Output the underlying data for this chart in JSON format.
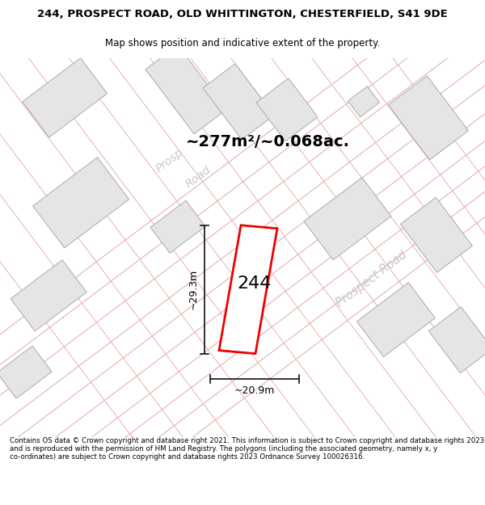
{
  "title_line1": "244, PROSPECT ROAD, OLD WHITTINGTON, CHESTERFIELD, S41 9DE",
  "title_line2": "Map shows position and indicative extent of the property.",
  "footer_text": "Contains OS data © Crown copyright and database right 2021. This information is subject to Crown copyright and database rights 2023 and is reproduced with the permission of HM Land Registry. The polygons (including the associated geometry, namely x, y co-ordinates) are subject to Crown copyright and database rights 2023 Ordnance Survey 100026316.",
  "area_text": "~277m²/~0.068ac.",
  "label_244": "244",
  "dim_width": "~20.9m",
  "dim_height": "~29.3m",
  "road_label_upper": "Prosp\nRoad",
  "road_label_lower": "Prospect Road",
  "map_bg": "#ffffff",
  "building_fill": "#e8e8e8",
  "building_edge": "#aaaaaa",
  "road_plot_color": "#e8b0b0",
  "red_plot_color": "#ee0000",
  "dim_line_color": "#111111",
  "road_text_color": "#cccccc",
  "title_fontsize": 9.5,
  "subtitle_fontsize": 8.5,
  "footer_fontsize": 6.2,
  "area_fontsize": 14,
  "label_fontsize": 16,
  "dim_fontsize": 9,
  "road_fontsize": 10
}
